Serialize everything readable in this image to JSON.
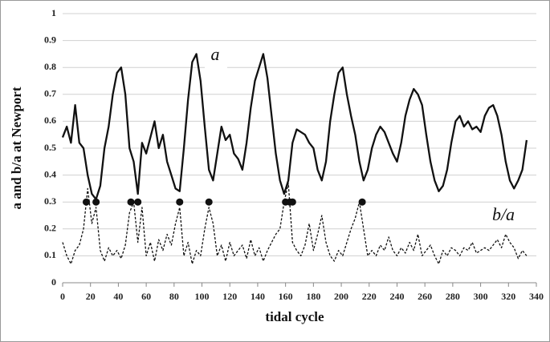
{
  "chart_data": {
    "type": "line",
    "ylabel": "a and b/a at Newport",
    "xlabel": "tidal cycle",
    "x": [
      0,
      3,
      6,
      9,
      12,
      15,
      18,
      21,
      24,
      27,
      30,
      33,
      36,
      39,
      42,
      45,
      48,
      51,
      54,
      57,
      60,
      63,
      66,
      69,
      72,
      75,
      78,
      81,
      84,
      87,
      90,
      93,
      96,
      99,
      102,
      105,
      108,
      111,
      114,
      117,
      120,
      123,
      126,
      129,
      132,
      135,
      138,
      141,
      144,
      147,
      150,
      153,
      156,
      159,
      162,
      165,
      168,
      171,
      174,
      177,
      180,
      183,
      186,
      189,
      192,
      195,
      198,
      201,
      204,
      207,
      210,
      213,
      216,
      219,
      222,
      225,
      228,
      231,
      234,
      237,
      240,
      243,
      246,
      249,
      252,
      255,
      258,
      261,
      264,
      267,
      270,
      273,
      276,
      279,
      282,
      285,
      288,
      291,
      294,
      297,
      300,
      303,
      306,
      309,
      312,
      315,
      318,
      321,
      324,
      327,
      330,
      333
    ],
    "series": [
      {
        "name": "a",
        "color": "#111111",
        "style": "solid",
        "values": [
          0.54,
          0.58,
          0.52,
          0.66,
          0.52,
          0.5,
          0.4,
          0.33,
          0.31,
          0.36,
          0.5,
          0.58,
          0.7,
          0.78,
          0.8,
          0.7,
          0.5,
          0.45,
          0.33,
          0.52,
          0.48,
          0.54,
          0.6,
          0.5,
          0.55,
          0.45,
          0.4,
          0.35,
          0.34,
          0.5,
          0.68,
          0.82,
          0.85,
          0.75,
          0.58,
          0.42,
          0.38,
          0.48,
          0.58,
          0.53,
          0.55,
          0.48,
          0.46,
          0.42,
          0.52,
          0.65,
          0.75,
          0.8,
          0.85,
          0.76,
          0.62,
          0.48,
          0.38,
          0.33,
          0.38,
          0.52,
          0.57,
          0.56,
          0.55,
          0.52,
          0.5,
          0.42,
          0.38,
          0.45,
          0.6,
          0.7,
          0.78,
          0.8,
          0.7,
          0.62,
          0.55,
          0.45,
          0.38,
          0.42,
          0.5,
          0.55,
          0.58,
          0.56,
          0.52,
          0.48,
          0.45,
          0.52,
          0.62,
          0.68,
          0.72,
          0.7,
          0.66,
          0.55,
          0.45,
          0.38,
          0.34,
          0.36,
          0.42,
          0.52,
          0.6,
          0.62,
          0.58,
          0.6,
          0.57,
          0.58,
          0.56,
          0.62,
          0.65,
          0.66,
          0.62,
          0.55,
          0.45,
          0.38,
          0.35,
          0.38,
          0.42,
          0.53
        ]
      },
      {
        "name": "b/a",
        "color": "#111111",
        "style": "dashed",
        "values": [
          0.15,
          0.1,
          0.07,
          0.12,
          0.14,
          0.2,
          0.35,
          0.22,
          0.28,
          0.12,
          0.08,
          0.13,
          0.1,
          0.12,
          0.09,
          0.14,
          0.26,
          0.3,
          0.15,
          0.28,
          0.1,
          0.15,
          0.08,
          0.16,
          0.12,
          0.18,
          0.14,
          0.22,
          0.28,
          0.1,
          0.15,
          0.07,
          0.12,
          0.1,
          0.2,
          0.28,
          0.22,
          0.1,
          0.14,
          0.08,
          0.15,
          0.1,
          0.12,
          0.14,
          0.09,
          0.16,
          0.1,
          0.13,
          0.08,
          0.12,
          0.15,
          0.18,
          0.2,
          0.3,
          0.37,
          0.15,
          0.12,
          0.1,
          0.14,
          0.22,
          0.12,
          0.18,
          0.25,
          0.15,
          0.1,
          0.08,
          0.12,
          0.1,
          0.15,
          0.2,
          0.24,
          0.3,
          0.2,
          0.1,
          0.12,
          0.1,
          0.14,
          0.12,
          0.17,
          0.12,
          0.1,
          0.13,
          0.11,
          0.15,
          0.12,
          0.18,
          0.1,
          0.12,
          0.14,
          0.1,
          0.07,
          0.12,
          0.1,
          0.13,
          0.12,
          0.1,
          0.13,
          0.12,
          0.15,
          0.11,
          0.12,
          0.13,
          0.12,
          0.14,
          0.16,
          0.13,
          0.18,
          0.15,
          0.13,
          0.09,
          0.12,
          0.1
        ]
      }
    ],
    "markers": {
      "color": "#111111",
      "x": [
        17,
        24,
        49,
        54,
        84,
        105,
        160,
        163,
        165,
        215
      ],
      "values": [
        0.3,
        0.3,
        0.3,
        0.3,
        0.3,
        0.3,
        0.3,
        0.3,
        0.3,
        0.3
      ]
    },
    "xlim": [
      0,
      340
    ],
    "ylim": [
      0,
      1
    ],
    "xticks": [
      0,
      20,
      40,
      60,
      80,
      100,
      120,
      140,
      160,
      180,
      200,
      220,
      240,
      260,
      280,
      300,
      320,
      340
    ],
    "yticks": [
      0,
      0.1,
      0.2,
      0.3,
      0.4,
      0.5,
      0.6,
      0.7,
      0.8,
      0.9,
      1
    ],
    "grid": true
  }
}
